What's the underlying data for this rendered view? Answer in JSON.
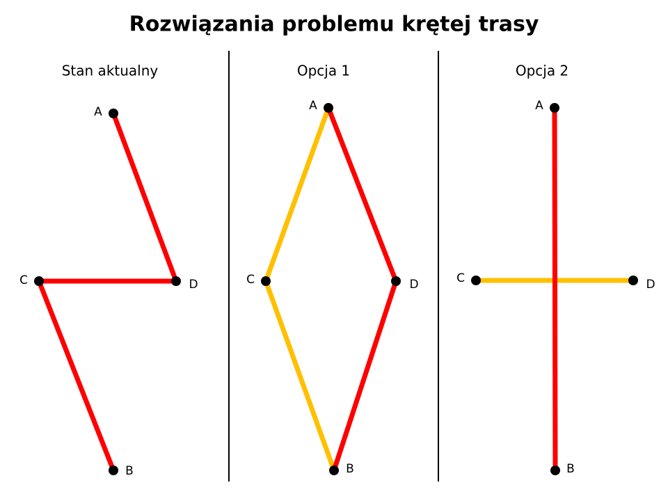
{
  "title": "Rozwiązania problemu krętej trasy",
  "panels": [
    {
      "title": "Stan aktualny",
      "nodes": [
        "A",
        "B",
        "C",
        "D"
      ]
    },
    {
      "title": "Opcja 1",
      "nodes": [
        "A",
        "B",
        "C",
        "D"
      ]
    },
    {
      "title": "Opcja 2",
      "nodes": [
        "A",
        "B",
        "C",
        "D"
      ]
    }
  ]
}
